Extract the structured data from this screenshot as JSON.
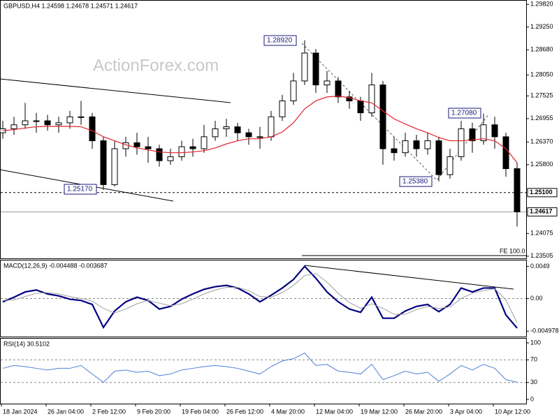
{
  "chart_data": [
    {
      "type": "candlestick",
      "title": "GBPUSD,H4  1.24598 1.24678 1.24571 1.24617",
      "watermark": "ActionForex.com",
      "categories": [
        "18 Jan 2024",
        null,
        null,
        null,
        "26 Jan 04:00",
        null,
        null,
        null,
        "2 Feb 12:00",
        null,
        null,
        null,
        "9 Feb 20:00",
        null,
        null,
        null,
        "19 Feb 04:00",
        null,
        null,
        null,
        "26 Feb 12:00",
        null,
        null,
        null,
        "4 Mar 20:00",
        null,
        null,
        null,
        "12 Mar 04:00",
        null,
        null,
        null,
        "19 Mar 12:00",
        null,
        null,
        null,
        "26 Mar 20:00",
        null,
        null,
        null,
        "3 Apr 04:00",
        null,
        null,
        null,
        "10 Apr 12:00",
        null,
        null
      ],
      "open": [
        1.266,
        1.267,
        1.268,
        1.269,
        1.269,
        1.268,
        1.2685,
        1.27,
        1.27,
        1.264,
        1.253,
        1.262,
        1.2635,
        1.2625,
        1.262,
        1.259,
        1.26,
        1.2625,
        1.262,
        1.265,
        1.267,
        1.2675,
        1.266,
        1.265,
        1.265,
        1.27,
        1.274,
        1.279,
        1.286,
        1.278,
        1.279,
        1.275,
        1.274,
        1.271,
        1.278,
        1.262,
        1.261,
        1.264,
        1.262,
        1.264,
        1.2555,
        1.26,
        1.267,
        1.264,
        1.268,
        1.265,
        1.257
      ],
      "high": [
        1.269,
        1.27,
        1.2735,
        1.271,
        1.2705,
        1.27,
        1.2715,
        1.274,
        1.271,
        1.265,
        1.264,
        1.265,
        1.266,
        1.265,
        1.263,
        1.262,
        1.264,
        1.2645,
        1.268,
        1.269,
        1.2695,
        1.2685,
        1.267,
        1.2675,
        1.2715,
        1.2755,
        1.281,
        1.2892,
        1.287,
        1.2815,
        1.28,
        1.2765,
        1.275,
        1.281,
        1.279,
        1.265,
        1.266,
        1.2655,
        1.266,
        1.265,
        1.262,
        1.269,
        1.2685,
        1.2708,
        1.27,
        1.266,
        1.2585
      ],
      "low": [
        1.2645,
        1.2655,
        1.267,
        1.266,
        1.2665,
        1.266,
        1.267,
        1.268,
        1.262,
        1.2517,
        1.2525,
        1.26,
        1.2605,
        1.2585,
        1.2575,
        1.258,
        1.259,
        1.26,
        1.261,
        1.264,
        1.265,
        1.264,
        1.263,
        1.262,
        1.264,
        1.269,
        1.273,
        1.278,
        1.276,
        1.276,
        1.2735,
        1.272,
        1.269,
        1.27,
        1.258,
        1.259,
        1.26,
        1.26,
        1.2605,
        1.2538,
        1.2545,
        1.259,
        1.261,
        1.263,
        1.262,
        1.255,
        1.2425
      ],
      "close": [
        1.267,
        1.268,
        1.269,
        1.269,
        1.268,
        1.2685,
        1.27,
        1.27,
        1.264,
        1.253,
        1.262,
        1.2635,
        1.2625,
        1.262,
        1.259,
        1.26,
        1.2625,
        1.262,
        1.265,
        1.267,
        1.2675,
        1.266,
        1.265,
        1.265,
        1.27,
        1.274,
        1.279,
        1.286,
        1.278,
        1.279,
        1.275,
        1.274,
        1.271,
        1.278,
        1.262,
        1.261,
        1.264,
        1.262,
        1.264,
        1.2555,
        1.26,
        1.267,
        1.264,
        1.268,
        1.265,
        1.257,
        1.24617
      ],
      "ma": {
        "color": "#e0222a",
        "values": [
          1.2665,
          1.2668,
          1.2672,
          1.2675,
          1.2676,
          1.2676,
          1.2676,
          1.2675,
          1.2665,
          1.265,
          1.264,
          1.263,
          1.2622,
          1.2617,
          1.2612,
          1.261,
          1.261,
          1.2612,
          1.2615,
          1.2622,
          1.2632,
          1.264,
          1.2645,
          1.2645,
          1.265,
          1.2662,
          1.2685,
          1.272,
          1.274,
          1.275,
          1.2752,
          1.2748,
          1.274,
          1.2735,
          1.2715,
          1.2695,
          1.2682,
          1.267,
          1.266,
          1.2648,
          1.264,
          1.264,
          1.2642,
          1.2645,
          1.264,
          1.262,
          1.2585
        ]
      },
      "annotations": [
        "1.28920",
        "1.27080",
        "1.25380",
        "1.25170",
        "FE 100.0"
      ],
      "hlines": [
        {
          "value": 1.251,
          "label": "1.25100"
        },
        {
          "value": 1.24617,
          "label": "1.24617"
        }
      ],
      "ylim": [
        1.2345,
        1.2993
      ],
      "yticks": [
        {
          "value": 1.2982,
          "label": "1.29820"
        },
        {
          "value": 1.2925,
          "label": "1.29250"
        },
        {
          "value": 1.2868,
          "label": "1.28680"
        },
        {
          "value": 1.2805,
          "label": "1.28050"
        },
        {
          "value": 1.27525,
          "label": "1.27525"
        },
        {
          "value": 1.26955,
          "label": "1.26955"
        },
        {
          "value": 1.2637,
          "label": "1.26370"
        },
        {
          "value": 1.258,
          "label": "1.25800"
        },
        {
          "value": 1.24075,
          "label": "1.24075"
        },
        {
          "value": 1.23505,
          "label": "1.23505"
        }
      ]
    },
    {
      "type": "line",
      "title": "MACD(12,26,9) -0.004488 -0.003687",
      "series": [
        {
          "color": "#000080",
          "values": [
            -0.0005,
            0.0002,
            0.001,
            0.0013,
            0.0007,
            0.0004,
            -0.0001,
            -0.0003,
            -0.0009,
            -0.0044,
            -0.0019,
            -0.0005,
            0.0002,
            -0.0003,
            -0.0016,
            -0.0012,
            -0.0001,
            0.0007,
            0.0014,
            0.0018,
            0.002,
            0.0016,
            0.0007,
            -0.0005,
            0.0005,
            0.0016,
            0.0029,
            0.0049,
            0.0031,
            0.001,
            -0.0005,
            -0.0016,
            -0.0021,
            0.0002,
            -0.003,
            -0.003,
            -0.0019,
            -0.0012,
            -0.0009,
            -0.002,
            -0.0009,
            0.0016,
            0.001,
            0.0016,
            0.0016,
            -0.0025,
            -0.0045
          ]
        },
        {
          "color": "#a0a0a0",
          "values": [
            -0.0003,
            -0.0002,
            0.0003,
            0.0008,
            0.0009,
            0.0007,
            0.0003,
            0.0,
            -0.0004,
            -0.0015,
            -0.0022,
            -0.0016,
            -0.0008,
            -0.0003,
            -0.0007,
            -0.0011,
            -0.0008,
            -0.0001,
            0.0007,
            0.0013,
            0.0017,
            0.0017,
            0.0012,
            0.0003,
            0.0002,
            0.0009,
            0.002,
            0.0035,
            0.0038,
            0.0025,
            0.0008,
            -0.0006,
            -0.0015,
            -0.0008,
            -0.0015,
            -0.0024,
            -0.0024,
            -0.0017,
            -0.0012,
            -0.0015,
            -0.0013,
            0.0,
            0.0008,
            0.0012,
            0.0015,
            -0.0002,
            -0.0037
          ]
        }
      ],
      "levels": [
        0
      ],
      "ylim": [
        -0.0058,
        0.0059
      ],
      "yticks": [
        0.0049,
        {
          "value": 0,
          "label": "0.00"
        },
        -0.004978
      ]
    },
    {
      "type": "line",
      "title": "RSI(14) 30.5102",
      "series": [
        {
          "color": "#4f7fd8",
          "values": [
            55,
            60,
            58,
            55,
            52,
            55,
            55,
            60,
            45,
            30,
            50,
            52,
            48,
            50,
            42,
            45,
            52,
            55,
            58,
            60,
            58,
            55,
            50,
            45,
            58,
            68,
            72,
            82,
            60,
            62,
            50,
            48,
            45,
            62,
            35,
            42,
            50,
            45,
            48,
            32,
            45,
            60,
            52,
            62,
            55,
            35,
            30.5102
          ]
        }
      ],
      "levels": [
        30,
        70
      ],
      "ylim": [
        -7.4,
        108.6
      ],
      "yticks": [
        100,
        70,
        30,
        0
      ]
    }
  ]
}
